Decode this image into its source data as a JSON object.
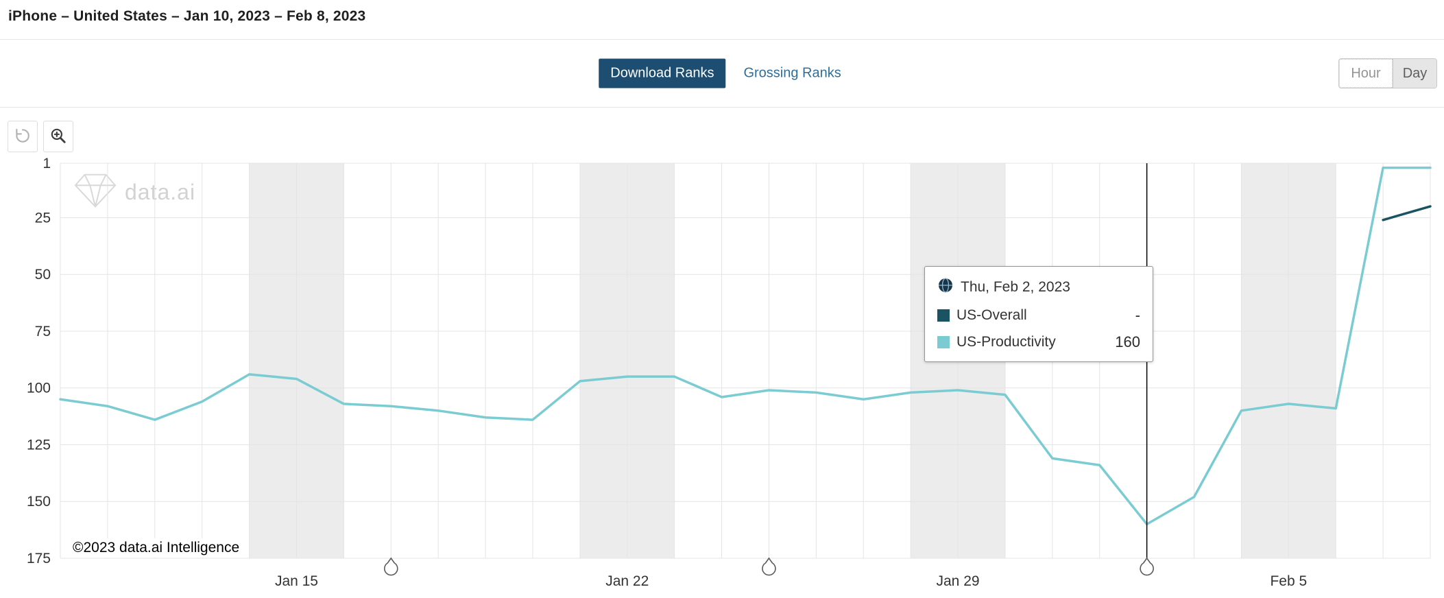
{
  "header": {
    "title": "iPhone – United States – Jan 10, 2023 – Feb 8, 2023"
  },
  "tabs": {
    "download": "Download Ranks",
    "grossing": "Grossing Ranks",
    "active": "Download Ranks"
  },
  "granularity": {
    "hour": "Hour",
    "day": "Day",
    "selected": "Day"
  },
  "toolbar": {
    "icons": [
      "reset-icon",
      "zoom-in-icon"
    ]
  },
  "watermark": {
    "text": "data.ai"
  },
  "copyright": "©2023 data.ai Intelligence",
  "tooltip": {
    "date": "Thu, Feb 2, 2023",
    "rows": [
      {
        "name": "US-Overall",
        "value": "-",
        "color": "#1a5462"
      },
      {
        "name": "US-Productivity",
        "value": "160",
        "color": "#7accd2"
      }
    ]
  },
  "colors": {
    "accent_button": "#1d4d70",
    "link": "#2d6e9d",
    "overall_line": "#1a5462",
    "productivity_line": "#7accd2",
    "weekend_band": "#ececec",
    "gridline": "#e4e4e4"
  },
  "chart_data": {
    "type": "line",
    "title": "",
    "xlabel": "",
    "ylabel": "Rank",
    "start_date": "Jan 10, 2023",
    "end_date": "Feb 8, 2023",
    "dates": [
      "Jan 10",
      "Jan 11",
      "Jan 12",
      "Jan 13",
      "Jan 14",
      "Jan 15",
      "Jan 16",
      "Jan 17",
      "Jan 18",
      "Jan 19",
      "Jan 20",
      "Jan 21",
      "Jan 22",
      "Jan 23",
      "Jan 24",
      "Jan 25",
      "Jan 26",
      "Jan 27",
      "Jan 28",
      "Jan 29",
      "Jan 30",
      "Jan 31",
      "Feb 1",
      "Feb 2",
      "Feb 3",
      "Feb 4",
      "Feb 5",
      "Feb 6",
      "Feb 7",
      "Feb 8"
    ],
    "y_axis": {
      "min": 1,
      "max": 175,
      "inverted": true,
      "ticks": [
        1,
        25,
        50,
        75,
        100,
        125,
        150,
        175
      ]
    },
    "x_ticks": [
      {
        "label": "Jan 15",
        "day": 5
      },
      {
        "label": "Jan 22",
        "day": 12
      },
      {
        "label": "Jan 29",
        "day": 19
      },
      {
        "label": "Feb 5",
        "day": 26
      }
    ],
    "weekend_bands": [
      [
        4,
        6
      ],
      [
        11,
        13
      ],
      [
        18,
        20
      ],
      [
        25,
        27
      ]
    ],
    "series": [
      {
        "name": "US-Overall",
        "color": "#1a5462",
        "values": [
          null,
          null,
          null,
          null,
          null,
          null,
          null,
          null,
          null,
          null,
          null,
          null,
          null,
          null,
          null,
          null,
          null,
          null,
          null,
          null,
          null,
          null,
          null,
          null,
          null,
          null,
          null,
          null,
          26,
          20
        ]
      },
      {
        "name": "US-Productivity",
        "color": "#7accd2",
        "values": [
          105,
          108,
          114,
          106,
          94,
          96,
          107,
          108,
          110,
          113,
          114,
          97,
          95,
          95,
          104,
          101,
          102,
          105,
          102,
          101,
          103,
          131,
          134,
          160,
          148,
          110,
          107,
          109,
          3,
          3
        ]
      }
    ],
    "cursor_day": 23,
    "cursor_date": "Feb 2",
    "event_marker_days": [
      7,
      15,
      23
    ],
    "grid": true,
    "legend_position": "tooltip"
  }
}
